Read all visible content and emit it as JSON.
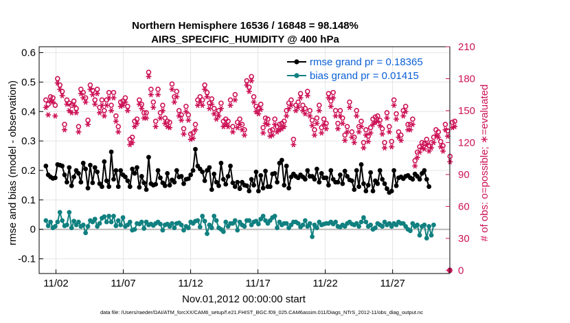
{
  "chart_data": {
    "type": "line",
    "title": "Northern Hemisphere 16536 / 16848 = 98.148%",
    "subtitle": "AIRS_SPECIFIC_HUMIDITY @ 400 hPa",
    "xlabel": "Nov.01,2012 00:00:00 start",
    "ylabel": "rmse and bias (model - observation)",
    "ylabel_right": "# of obs: o=possible; ∗=evaluated",
    "footnote": "data file: /Users/raeder/DAI/ATM_forcXX/CAM6_setup/f.e21.FHIST_BGC.f09_025.CAM6assim.011/Diags_NTrS_2012-11/obs_diag_output.nc",
    "xlim": [
      0.5,
      31.0
    ],
    "ylim": [
      -0.15,
      0.62
    ],
    "ylim_right": [
      -3,
      210
    ],
    "x_tick_values": [
      1.75,
      6.75,
      11.75,
      16.75,
      21.75,
      26.75
    ],
    "x_tick_labels": [
      "11/02",
      "11/07",
      "11/12",
      "11/17",
      "11/22",
      "11/27"
    ],
    "y_ticks": [
      "0.6",
      "0.5",
      "0.4",
      "0.3",
      "0.2",
      "0.1",
      "0",
      "-0.1"
    ],
    "y_right_ticks": [
      "210",
      "180",
      "150",
      "120",
      "90",
      "60",
      "30",
      "0"
    ],
    "grid": true,
    "legend_position": "top-right",
    "series": [
      {
        "name": "rmse grand pr = 0.18365",
        "color": "#000000",
        "marker": "filled-circle",
        "axis": "left",
        "values": [
          0.215,
          0.185,
          0.178,
          0.173,
          0.175,
          0.22,
          0.218,
          0.215,
          0.185,
          0.16,
          0.21,
          0.148,
          0.178,
          0.2,
          0.19,
          0.16,
          0.225,
          0.205,
          0.14,
          0.218,
          0.158,
          0.21,
          0.195,
          0.155,
          0.145,
          0.23,
          0.165,
          0.145,
          0.263,
          0.17,
          0.2,
          0.145,
          0.2,
          0.185,
          0.178,
          0.165,
          0.145,
          0.205,
          0.19,
          0.21,
          0.143,
          0.18,
          0.158,
          0.135,
          0.245,
          0.155,
          0.15,
          0.153,
          0.2,
          0.175,
          0.158,
          0.148,
          0.19,
          0.15,
          0.168,
          0.16,
          0.2,
          0.178,
          0.18,
          0.155,
          0.17,
          0.172,
          0.185,
          0.2,
          0.272,
          0.215,
          0.205,
          0.195,
          0.165,
          0.2,
          0.21,
          0.135,
          0.188,
          0.16,
          0.148,
          0.225,
          0.17,
          0.153,
          0.18,
          0.215,
          0.158,
          0.145,
          0.16,
          0.138,
          0.16,
          0.15,
          0.148,
          0.13,
          0.17,
          0.15,
          0.195,
          0.13,
          0.183,
          0.14,
          0.198,
          0.145,
          0.145,
          0.188,
          0.19,
          0.16,
          0.225,
          0.235,
          0.15,
          0.215,
          0.14,
          0.178,
          0.188,
          0.18,
          0.175,
          0.185,
          0.178,
          0.17,
          0.2,
          0.18,
          0.18,
          0.17,
          0.205,
          0.16,
          0.19,
          0.175,
          0.175,
          0.15,
          0.2,
          0.17,
          0.16,
          0.16,
          0.185,
          0.155,
          0.198,
          0.18,
          0.168,
          0.165,
          0.135,
          0.2,
          0.145,
          0.22,
          0.155,
          0.13,
          0.15,
          0.193,
          0.13,
          0.165,
          0.155,
          0.2,
          0.17,
          0.155,
          0.138,
          0.125,
          0.13,
          0.2,
          0.148,
          0.175,
          0.178,
          0.172,
          0.18,
          0.183,
          0.175,
          0.17,
          0.188,
          0.18,
          0.17,
          0.19,
          0.2,
          0.17,
          0.145
        ]
      },
      {
        "name": "bias grand pr = 0.01415",
        "color": "#118080",
        "marker": "filled-circle",
        "axis": "left",
        "values": [
          0.03,
          0.012,
          0.025,
          0.005,
          0.01,
          0.025,
          0.058,
          0.03,
          0.012,
          0.015,
          0.058,
          0.005,
          0.028,
          0.015,
          0.025,
          0.01,
          0.015,
          -0.012,
          0.01,
          0.03,
          0.025,
          0.035,
          0.01,
          0.02,
          0.038,
          0.043,
          0.025,
          0.045,
          0.025,
          0.045,
          0.012,
          0.03,
          0.015,
          0.04,
          0.01,
          0.015,
          0.025,
          -0.003,
          0.0,
          0.02,
          0.018,
          0.025,
          0.003,
          0.025,
          0.015,
          0.018,
          0.013,
          0.02,
          0.025,
          0.018,
          -0.003,
          0.015,
          0.018,
          0.01,
          0.02,
          0.005,
          0.02,
          0.022,
          0.015,
          -0.003,
          0.01,
          0.005,
          0.025,
          0.02,
          0.028,
          0.03,
          0.008,
          0.045,
          0.028,
          -0.015,
          0.015,
          0.005,
          0.045,
          0.03,
          0.005,
          0.0,
          -0.008,
          0.025,
          0.01,
          0.02,
          0.02,
          0.03,
          -0.003,
          0.025,
          0.015,
          0.01,
          0.03,
          0.03,
          0.015,
          0.025,
          0.028,
          0.018,
          0.035,
          0.045,
          0.03,
          0.02,
          0.03,
          0.04,
          0.045,
          0.005,
          0.025,
          0.015,
          0.02,
          0.02,
          0.005,
          0.015,
          0.025,
          0.025,
          0.02,
          0.008,
          0.015,
          0.03,
          0.01,
          0.02,
          -0.025,
          0.015,
          0.005,
          0.025,
          0.015,
          0.018,
          0.02,
          0.02,
          0.025,
          0.018,
          0.025,
          0.01,
          0.008,
          0.015,
          0.01,
          0.02,
          0.025,
          0.018,
          0.015,
          0.02,
          0.01,
          0.025,
          0.04,
          0.025,
          0.01,
          0.015,
          0.0,
          0.005,
          0.02,
          0.015,
          0.01,
          0.025,
          0.015,
          0.02,
          0.01,
          0.02,
          0.015,
          0.025,
          0.02,
          0.02,
          0.01,
          0.0,
          -0.005,
          0.02,
          0.01,
          0.015,
          -0.02,
          0.01,
          0.015,
          -0.03,
          0.01,
          -0.02,
          0.015
        ]
      },
      {
        "name": "possible obs (o)",
        "color": "#cc1155",
        "marker": "open-circle",
        "axis": "right",
        "values": [
          160,
          156,
          163,
          162,
          155,
          180,
          174,
          168,
          137,
          160,
          157,
          155,
          159,
          152,
          135,
          170,
          167,
          162,
          141,
          174,
          169,
          160,
          170,
          153,
          160,
          150,
          160,
          167,
          155,
          167,
          145,
          135,
          158,
          159,
          162,
          154,
          123,
          125,
          140,
          142,
          160,
          156,
          148,
          148,
          186,
          170,
          158,
          140,
          170,
          148,
          155,
          143,
          140,
          139,
          175,
          163,
          168,
          150,
          146,
          133,
          154,
          146,
          128,
          129,
          137,
          160,
          163,
          160,
          174,
          167,
          157,
          161,
          152,
          147,
          150,
          157,
          140,
          142,
          140,
          160,
          135,
          165,
          139,
          142,
          137,
          132,
          178,
          172,
          182,
          163,
          154,
          152,
          156,
          134,
          143,
          142,
          131,
          132,
          142,
          135,
          137,
          138,
          140,
          150,
          157,
          160,
          123,
          155,
          158,
          166,
          155,
          152,
          168,
          150,
          141,
          132,
          143,
          155,
          134,
          142,
          138,
          166,
          159,
          167,
          150,
          138,
          150,
          143,
          127,
          135,
          158,
          130,
          125,
          150,
          135,
          140,
          120,
          132,
          126,
          134,
          142,
          144,
          145,
          141,
          133,
          120,
          148,
          135,
          121,
          160,
          147,
          130,
          127,
          150,
          154,
          137,
          137,
          142,
          103,
          111,
          116,
          120,
          119,
          123,
          117,
          120,
          125,
          132,
          130,
          121,
          117,
          137,
          131,
          107,
          139,
          140
        ]
      },
      {
        "name": "evaluated obs (*)",
        "color": "#cc1155",
        "marker": "asterisk",
        "axis": "right",
        "values": [
          153,
          146,
          159,
          158,
          145,
          176,
          170,
          164,
          132,
          156,
          150,
          148,
          155,
          148,
          130,
          166,
          162,
          158,
          137,
          170,
          165,
          156,
          166,
          148,
          155,
          145,
          155,
          162,
          150,
          162,
          140,
          130,
          154,
          155,
          158,
          150,
          118,
          120,
          135,
          138,
          156,
          152,
          143,
          143,
          182,
          165,
          153,
          135,
          165,
          143,
          150,
          138,
          135,
          134,
          170,
          158,
          163,
          145,
          141,
          128,
          149,
          141,
          123,
          124,
          132,
          155,
          158,
          155,
          170,
          163,
          152,
          156,
          147,
          142,
          145,
          152,
          135,
          137,
          135,
          155,
          130,
          160,
          134,
          137,
          132,
          127,
          174,
          168,
          178,
          158,
          149,
          147,
          151,
          129,
          138,
          137,
          126,
          127,
          137,
          130,
          132,
          133,
          135,
          145,
          152,
          155,
          118,
          150,
          153,
          162,
          150,
          147,
          164,
          145,
          136,
          127,
          138,
          150,
          129,
          137,
          133,
          162,
          154,
          162,
          145,
          133,
          145,
          138,
          122,
          130,
          153,
          125,
          120,
          145,
          130,
          135,
          115,
          127,
          121,
          129,
          137,
          139,
          140,
          136,
          128,
          115,
          143,
          130,
          116,
          155,
          142,
          125,
          122,
          145,
          149,
          132,
          132,
          137,
          98,
          106,
          111,
          115,
          114,
          118,
          112,
          115,
          120,
          127,
          125,
          116,
          112,
          132,
          126,
          102,
          134,
          135
        ]
      }
    ],
    "end_marker_right": 0
  }
}
